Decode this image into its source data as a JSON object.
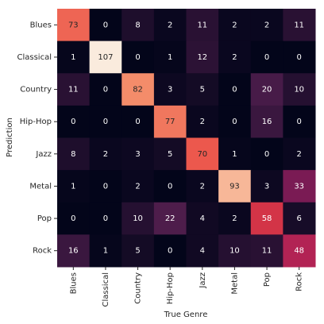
{
  "chart_data": {
    "type": "heatmap",
    "x_label": "True Genre",
    "y_label": "Prediction",
    "x_categories": [
      "Blues",
      "Classical",
      "Country",
      "Hip-Hop",
      "Jazz",
      "Metal",
      "Pop",
      "Rock"
    ],
    "y_categories": [
      "Blues",
      "Classical",
      "Country",
      "Hip-Hop",
      "Jazz",
      "Metal",
      "Pop",
      "Rock"
    ],
    "values": [
      [
        73,
        0,
        8,
        2,
        11,
        2,
        2,
        11
      ],
      [
        1,
        107,
        0,
        1,
        12,
        2,
        0,
        0
      ],
      [
        11,
        0,
        82,
        3,
        5,
        0,
        20,
        10
      ],
      [
        0,
        0,
        0,
        77,
        2,
        0,
        16,
        0
      ],
      [
        8,
        2,
        3,
        5,
        70,
        1,
        0,
        2
      ],
      [
        1,
        0,
        2,
        0,
        2,
        93,
        3,
        33
      ],
      [
        0,
        0,
        10,
        22,
        4,
        2,
        58,
        6
      ],
      [
        16,
        1,
        5,
        0,
        4,
        10,
        11,
        48
      ]
    ],
    "colormap": [
      "#03051a",
      "#4c1d4b",
      "#a11a5b",
      "#e83f3f",
      "#f69c73",
      "#faebdd"
    ]
  }
}
